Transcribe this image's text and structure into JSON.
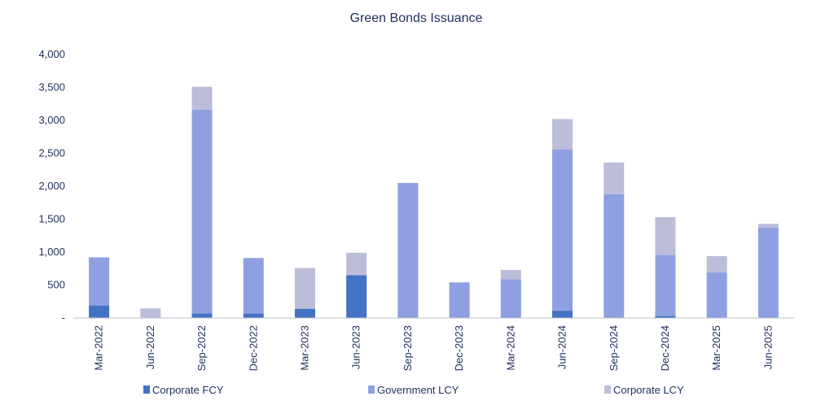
{
  "chart_data": {
    "type": "bar",
    "stacked": true,
    "title": "Green Bonds Issuance",
    "xlabel": "",
    "ylabel": "",
    "ylim": [
      0,
      4000
    ],
    "yticks": [
      0,
      500,
      1000,
      1500,
      2000,
      2500,
      3000,
      3500,
      4000
    ],
    "ytick_labels": [
      "-",
      "500",
      "1,000",
      "1,500",
      "2,000",
      "2,500",
      "3,000",
      "3,500",
      "4,000"
    ],
    "grid": false,
    "legend_position": "bottom",
    "categories": [
      "Mar-2022",
      "Jun-2022",
      "Sep-2022",
      "Dec-2022",
      "Mar-2023",
      "Jun-2023",
      "Sep-2023",
      "Dec-2023",
      "Mar-2024",
      "Jun-2024",
      "Sep-2024",
      "Dec-2024",
      "Mar-2025",
      "Jun-2025"
    ],
    "series": [
      {
        "name": "Corporate FCY",
        "color": "#4472c4",
        "values": [
          190,
          0,
          70,
          70,
          140,
          650,
          0,
          0,
          0,
          110,
          0,
          30,
          0,
          0
        ]
      },
      {
        "name": "Government LCY",
        "color": "#8ea0e2",
        "values": [
          730,
          0,
          3090,
          840,
          0,
          0,
          2050,
          540,
          590,
          2450,
          1880,
          930,
          690,
          1370
        ]
      },
      {
        "name": "Corporate LCY",
        "color": "#bcbdd9",
        "values": [
          0,
          145,
          350,
          0,
          620,
          340,
          0,
          0,
          140,
          460,
          480,
          570,
          250,
          60
        ]
      }
    ]
  }
}
